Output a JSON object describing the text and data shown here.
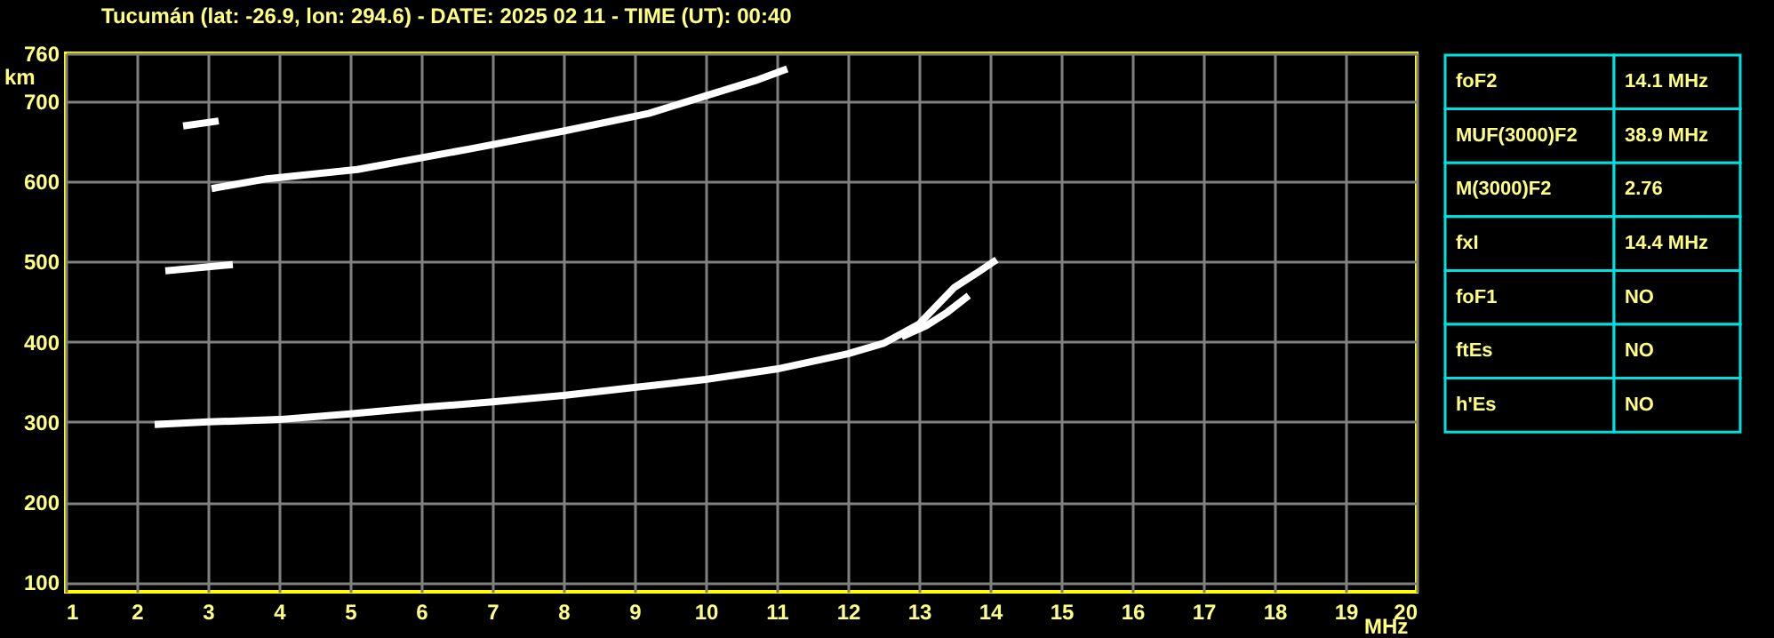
{
  "chart_data": [
    {
      "type": "line",
      "title": "Tucumán (lat: -26.9, lon: 294.6) - DATE: 2025 02 11 - TIME (UT): 00:40",
      "xlabel": "MHz",
      "ylabel": "km",
      "xlim": [
        1,
        20
      ],
      "ylim": [
        88,
        760
      ],
      "xticks": [
        1,
        2,
        3,
        4,
        5,
        6,
        7,
        8,
        9,
        10,
        11,
        12,
        13,
        14,
        15,
        16,
        17,
        18,
        19,
        20
      ],
      "yticks": [
        100,
        200,
        300,
        400,
        500,
        600,
        700,
        760
      ],
      "grid": true,
      "line_style": "solid",
      "series": [
        {
          "color": "#ffffff",
          "x": [
            2.3,
            3,
            4,
            5,
            6,
            7,
            8,
            9,
            10,
            11,
            12,
            12.5,
            13,
            13.5,
            13.8,
            14.05
          ],
          "values": [
            297,
            300,
            303,
            310,
            318,
            325,
            333,
            343,
            353,
            366,
            385,
            398,
            422,
            468,
            485,
            500
          ]
        },
        {
          "color": "#ffffff",
          "x": [
            12.8,
            13.1,
            13.4,
            13.66
          ],
          "values": [
            408,
            420,
            437,
            455
          ]
        },
        {
          "color": "#ffffff",
          "x": [
            3.1,
            3.8,
            5.1,
            6.7,
            8,
            9.2,
            10.7,
            11.1
          ],
          "values": [
            592,
            603,
            615,
            641,
            663,
            685,
            726,
            739
          ]
        },
        {
          "color": "#ffffff",
          "x": [
            2.7,
            3.1
          ],
          "values": [
            670,
            675
          ]
        },
        {
          "color": "#ffffff",
          "x": [
            2.45,
            3.3
          ],
          "values": [
            489,
            496
          ]
        }
      ]
    },
    {
      "type": "other",
      "categories": [
        "foF2",
        "MUF(3000)F2",
        "M(3000)F2",
        "fxI",
        "foF1",
        "ftEs",
        "h'Es"
      ],
      "value_labels": [
        "14.1 MHz",
        "38.9 MHz",
        "2.76",
        "14.4 MHz",
        "NO",
        "NO",
        "NO"
      ]
    }
  ]
}
